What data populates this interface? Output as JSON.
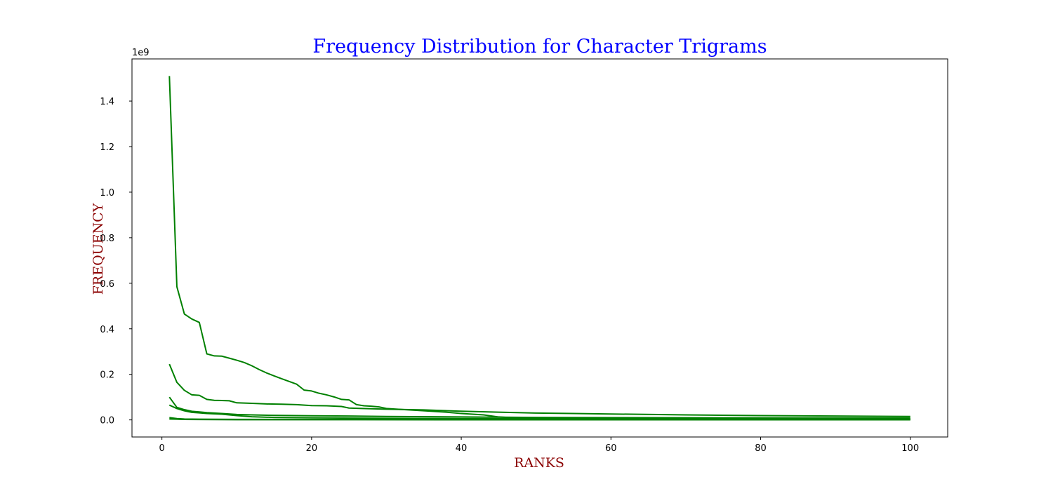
{
  "chart_data": {
    "type": "line",
    "title": "Frequency Distribution for Character Trigrams",
    "xlabel": "RANKS",
    "ylabel": "FREQUENCY",
    "y_offset_label": "1e9",
    "y_scale": 1000000000,
    "xlim": [
      -4,
      105
    ],
    "ylim": [
      -75000000,
      1585000000
    ],
    "x_ticks": [
      0,
      20,
      40,
      60,
      80,
      100
    ],
    "x_tick_labels": [
      "0",
      "20",
      "40",
      "60",
      "80",
      "100"
    ],
    "y_ticks": [
      0,
      200000000,
      400000000,
      600000000,
      800000000,
      1000000000,
      1200000000,
      1400000000
    ],
    "y_tick_labels": [
      "0.0",
      "0.2",
      "0.4",
      "0.6",
      "0.8",
      "1.0",
      "1.2",
      "1.4"
    ],
    "grid": false,
    "legend": "none",
    "series": [
      {
        "points": [
          [
            1,
            1510000000
          ],
          [
            2,
            585000000
          ],
          [
            3,
            465000000
          ],
          [
            4,
            443000000
          ],
          [
            5,
            428000000
          ],
          [
            6,
            290000000
          ],
          [
            7,
            281000000
          ],
          [
            8,
            280000000
          ],
          [
            9,
            271000000
          ],
          [
            10,
            262000000
          ],
          [
            11,
            252000000
          ],
          [
            12,
            238000000
          ],
          [
            13,
            221000000
          ],
          [
            14,
            206000000
          ],
          [
            15,
            193000000
          ],
          [
            16,
            181000000
          ],
          [
            17,
            169000000
          ],
          [
            18,
            157000000
          ],
          [
            19,
            131000000
          ],
          [
            20,
            127000000
          ],
          [
            21,
            117000000
          ],
          [
            22,
            110000000
          ],
          [
            23,
            101000000
          ],
          [
            24,
            90000000
          ],
          [
            25,
            88000000
          ],
          [
            26,
            67000000
          ],
          [
            27,
            62000000
          ],
          [
            28,
            60000000
          ],
          [
            29,
            57000000
          ],
          [
            30,
            50000000
          ],
          [
            32,
            46000000
          ],
          [
            35,
            40000000
          ],
          [
            38,
            34000000
          ],
          [
            40,
            28000000
          ],
          [
            43,
            22000000
          ],
          [
            45,
            13000000
          ],
          [
            47,
            9000000
          ],
          [
            50,
            7000000
          ],
          [
            60,
            5000000
          ],
          [
            80,
            4000000
          ],
          [
            100,
            3500000
          ]
        ]
      },
      {
        "points": [
          [
            1,
            245000000
          ],
          [
            2,
            165000000
          ],
          [
            3,
            130000000
          ],
          [
            4,
            110000000
          ],
          [
            5,
            108000000
          ],
          [
            6,
            90000000
          ],
          [
            7,
            86000000
          ],
          [
            8,
            85000000
          ],
          [
            9,
            84000000
          ],
          [
            10,
            75000000
          ],
          [
            12,
            73000000
          ],
          [
            14,
            70000000
          ],
          [
            16,
            69000000
          ],
          [
            18,
            67000000
          ],
          [
            20,
            63000000
          ],
          [
            22,
            62000000
          ],
          [
            24,
            59000000
          ],
          [
            25,
            52000000
          ],
          [
            28,
            49000000
          ],
          [
            30,
            47000000
          ],
          [
            35,
            44000000
          ],
          [
            40,
            38000000
          ],
          [
            45,
            34000000
          ],
          [
            50,
            30000000
          ],
          [
            55,
            28000000
          ],
          [
            60,
            26000000
          ],
          [
            70,
            22000000
          ],
          [
            80,
            19000000
          ],
          [
            90,
            17000000
          ],
          [
            100,
            15000000
          ]
        ]
      },
      {
        "points": [
          [
            1,
            100000000
          ],
          [
            2,
            55000000
          ],
          [
            3,
            45000000
          ],
          [
            4,
            38000000
          ],
          [
            5,
            35000000
          ],
          [
            6,
            32000000
          ],
          [
            8,
            28000000
          ],
          [
            10,
            24000000
          ],
          [
            12,
            22000000
          ],
          [
            15,
            20000000
          ],
          [
            20,
            18000000
          ],
          [
            25,
            17000000
          ],
          [
            30,
            15000000
          ],
          [
            40,
            13000000
          ],
          [
            50,
            11000000
          ],
          [
            60,
            10000000
          ],
          [
            80,
            9000000
          ],
          [
            100,
            8000000
          ]
        ]
      },
      {
        "points": [
          [
            1,
            65000000
          ],
          [
            2,
            50000000
          ],
          [
            3,
            40000000
          ],
          [
            4,
            33000000
          ],
          [
            5,
            31000000
          ],
          [
            6,
            28000000
          ],
          [
            8,
            25000000
          ],
          [
            10,
            19000000
          ],
          [
            12,
            14000000
          ],
          [
            15,
            11000000
          ],
          [
            20,
            9000000
          ],
          [
            30,
            7000000
          ],
          [
            40,
            6000000
          ],
          [
            60,
            5000000
          ],
          [
            80,
            4500000
          ],
          [
            100,
            4000000
          ]
        ]
      },
      {
        "points": [
          [
            1,
            10000000
          ],
          [
            2,
            6000000
          ],
          [
            3,
            4000000
          ],
          [
            5,
            3000000
          ],
          [
            10,
            2500000
          ],
          [
            20,
            2000000
          ],
          [
            40,
            1500000
          ],
          [
            60,
            1200000
          ],
          [
            80,
            1000000
          ],
          [
            100,
            900000
          ]
        ]
      },
      {
        "points": [
          [
            1,
            4000000
          ],
          [
            2,
            3000000
          ],
          [
            3,
            2000000
          ],
          [
            5,
            1500000
          ],
          [
            10,
            1000000
          ],
          [
            20,
            800000
          ],
          [
            40,
            600000
          ],
          [
            60,
            500000
          ],
          [
            80,
            400000
          ],
          [
            100,
            300000
          ]
        ]
      }
    ]
  },
  "colors": {
    "line": "#008000",
    "title": "#0000ff",
    "axis_label": "#8b0000",
    "axes": "#000000"
  }
}
